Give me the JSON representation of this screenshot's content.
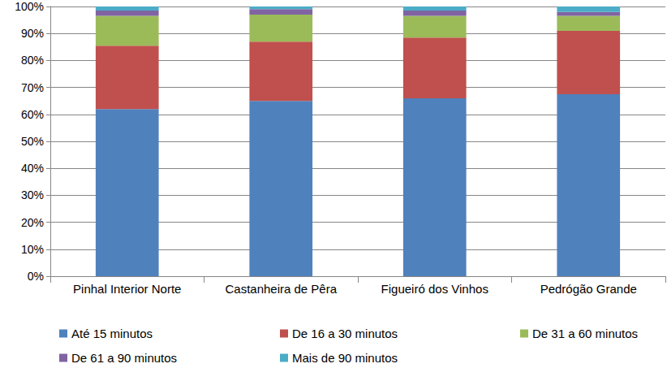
{
  "chart_data": {
    "type": "bar",
    "stacked": true,
    "grid": true,
    "legend": "bottom",
    "categories": [
      "Pinhal Interior Norte",
      "Castanheira de Pêra",
      "Figueiró dos Vinhos",
      "Pedrógão Grande"
    ],
    "series": [
      {
        "name": "Até 15 minutos",
        "color": "#4f81bd",
        "values": [
          62,
          65,
          66,
          67.5
        ]
      },
      {
        "name": "De 16 a 30 minutos",
        "color": "#c0504d",
        "values": [
          23.5,
          22,
          22.5,
          23.5
        ]
      },
      {
        "name": "De 31 a 60 minutos",
        "color": "#9bbb59",
        "values": [
          11,
          10,
          8,
          5.5
        ]
      },
      {
        "name": "De 61 a 90 minutos",
        "color": "#8064a2",
        "values": [
          2,
          2,
          2,
          1.5
        ]
      },
      {
        "name": "Mais de 90 minutos",
        "color": "#4bacc6",
        "values": [
          1.5,
          1,
          1.5,
          2
        ]
      }
    ],
    "ylim": [
      0,
      100
    ],
    "yticks": [
      {
        "value": 0,
        "label": "0%"
      },
      {
        "value": 10,
        "label": "10%"
      },
      {
        "value": 20,
        "label": "20%"
      },
      {
        "value": 30,
        "label": "30%"
      },
      {
        "value": 40,
        "label": "40%"
      },
      {
        "value": 50,
        "label": "50%"
      },
      {
        "value": 60,
        "label": "60%"
      },
      {
        "value": 70,
        "label": "70%"
      },
      {
        "value": 80,
        "label": "80%"
      },
      {
        "value": 90,
        "label": "90%"
      },
      {
        "value": 100,
        "label": "100%"
      }
    ]
  }
}
